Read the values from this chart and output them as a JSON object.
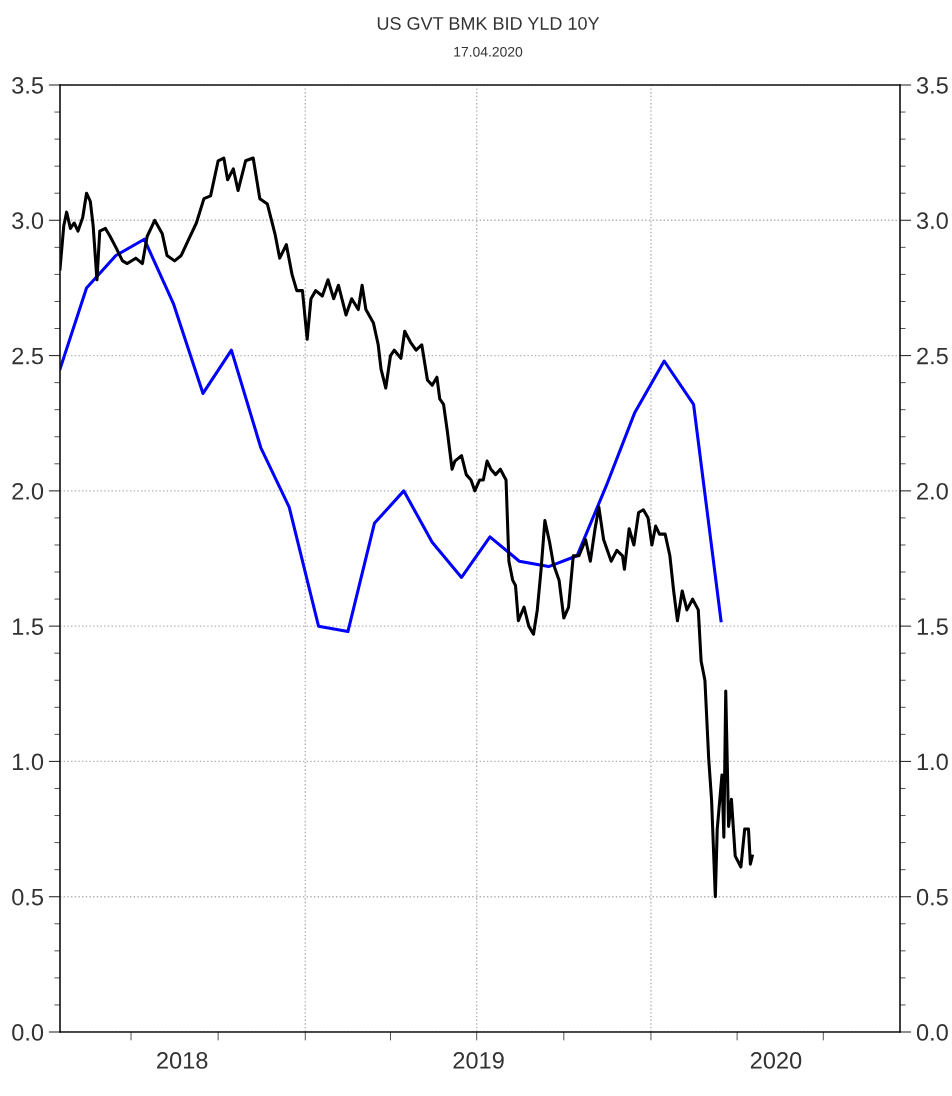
{
  "chart_data": {
    "type": "line",
    "title": "US GVT BMK BID YLD 10Y",
    "subtitle": "17.04.2020",
    "xlim": [
      "2018-04-17",
      "2020-09-20"
    ],
    "xticks": [
      {
        "value": "2018-07-01",
        "label": null
      },
      {
        "value": "2018-10-01",
        "label": null
      },
      {
        "value": "2019-01-01",
        "label": null
      },
      {
        "value": "2019-04-01",
        "label": null
      },
      {
        "value": "2019-07-01",
        "label": null
      },
      {
        "value": "2019-10-01",
        "label": null
      },
      {
        "value": "2020-01-01",
        "label": null
      },
      {
        "value": "2020-04-01",
        "label": null
      },
      {
        "value": "2020-07-01",
        "label": null
      },
      {
        "value": "2018-08-24",
        "label": "2018"
      },
      {
        "value": "2019-07-03",
        "label": "2019"
      },
      {
        "value": "2020-05-12",
        "label": "2020"
      }
    ],
    "ylim": [
      0,
      3.5
    ],
    "yticks": [
      {
        "value": 0,
        "label": "0.0"
      },
      0.5,
      {
        "value": 1,
        "label": "1.0"
      },
      1.5,
      {
        "value": 2,
        "label": "2.0"
      },
      2.5,
      {
        "value": 3,
        "label": "3.0"
      },
      3.5,
      {
        "value": 0.1,
        "label": null
      },
      {
        "value": 0.2,
        "label": null
      },
      {
        "value": 0.3,
        "label": null
      },
      {
        "value": 0.4,
        "label": null
      },
      {
        "value": 0.6,
        "label": null
      },
      {
        "value": 0.7,
        "label": null
      },
      {
        "value": 0.8,
        "label": null
      },
      {
        "value": 0.9,
        "label": null
      },
      {
        "value": 1.1,
        "label": null
      },
      {
        "value": 1.2,
        "label": null
      },
      {
        "value": 1.3,
        "label": null
      },
      {
        "value": 1.4,
        "label": null
      },
      {
        "value": 1.6,
        "label": null
      },
      {
        "value": 1.7,
        "label": null
      },
      {
        "value": 1.8,
        "label": null
      },
      {
        "value": 1.9,
        "label": null
      },
      {
        "value": 2.1,
        "label": null
      },
      {
        "value": 2.2,
        "label": null
      },
      {
        "value": 2.3,
        "label": null
      },
      {
        "value": 2.4,
        "label": null
      },
      {
        "value": 2.6,
        "label": null
      },
      {
        "value": 2.7,
        "label": null
      },
      {
        "value": 2.8,
        "label": null
      },
      {
        "value": 2.9,
        "label": null
      },
      {
        "value": 3.1,
        "label": null
      },
      {
        "value": 3.2,
        "label": null
      },
      {
        "value": 3.3,
        "label": null
      },
      {
        "value": 3.4,
        "label": null
      }
    ],
    "y2lim": [
      0,
      3.5
    ],
    "y2ticks": [
      {
        "value": 0,
        "label": "0.0"
      },
      0.5,
      {
        "value": 1,
        "label": "1.0"
      },
      1.5,
      {
        "value": 2,
        "label": "2.0"
      },
      2.5,
      {
        "value": 3,
        "label": "3.0"
      },
      3.5,
      {
        "value": 0.1,
        "label": null
      },
      {
        "value": 0.2,
        "label": null
      },
      {
        "value": 0.3,
        "label": null
      },
      {
        "value": 0.4,
        "label": null
      },
      {
        "value": 0.6,
        "label": null
      },
      {
        "value": 0.7,
        "label": null
      },
      {
        "value": 0.8,
        "label": null
      },
      {
        "value": 0.9,
        "label": null
      },
      {
        "value": 1.1,
        "label": null
      },
      {
        "value": 1.2,
        "label": null
      },
      {
        "value": 1.3,
        "label": null
      },
      {
        "value": 1.4,
        "label": null
      },
      {
        "value": 1.6,
        "label": null
      },
      {
        "value": 1.7,
        "label": null
      },
      {
        "value": 1.8,
        "label": null
      },
      {
        "value": 1.9,
        "label": null
      },
      {
        "value": 2.1,
        "label": null
      },
      {
        "value": 2.2,
        "label": null
      },
      {
        "value": 2.3,
        "label": null
      },
      {
        "value": 2.4,
        "label": null
      },
      {
        "value": 2.6,
        "label": null
      },
      {
        "value": 2.7,
        "label": null
      },
      {
        "value": 2.8,
        "label": null
      },
      {
        "value": 2.9,
        "label": null
      },
      {
        "value": 3.1,
        "label": null
      },
      {
        "value": 3.2,
        "label": null
      },
      {
        "value": 3.3,
        "label": null
      },
      {
        "value": 3.4,
        "label": null
      }
    ],
    "grid": "y",
    "ref_lines": [
      {
        "axis": "x",
        "value": "2019-01-01",
        "color": "#b0b0b0",
        "line_style": "dotted"
      },
      {
        "axis": "x",
        "value": "2019-07-01",
        "color": "#b0b0b0",
        "line_style": "dotted"
      },
      {
        "axis": "x",
        "value": "2020-01-01",
        "color": "#b0b0b0",
        "line_style": "dotted"
      }
    ],
    "series": [
      {
        "color": "#0000ff",
        "x": [
          "2018-04-17",
          "2018-05-15",
          "2018-06-15",
          "2018-07-15",
          "2018-08-15",
          "2018-09-15",
          "2018-10-15",
          "2018-11-15",
          "2018-12-15",
          "2019-01-15",
          "2019-02-15",
          "2019-03-15",
          "2019-04-15",
          "2019-05-15",
          "2019-06-15",
          "2019-07-15",
          "2019-08-15",
          "2019-09-15",
          "2019-10-15",
          "2019-11-15",
          "2019-12-15",
          "2020-01-15",
          "2020-02-15",
          "2020-03-15"
        ],
        "values": [
          2.45,
          2.75,
          2.87,
          2.93,
          2.69,
          2.36,
          2.52,
          2.16,
          1.94,
          1.5,
          1.48,
          1.88,
          2.0,
          1.81,
          1.68,
          1.83,
          1.74,
          1.72,
          1.76,
          2.02,
          2.29,
          2.48,
          2.32,
          1.52
        ]
      },
      {
        "color": "#000000",
        "x": [
          "2018-04-17",
          "2018-04-21",
          "2018-04-24",
          "2018-04-28",
          "2018-05-02",
          "2018-05-06",
          "2018-05-11",
          "2018-05-15",
          "2018-05-19",
          "2018-05-22",
          "2018-05-26",
          "2018-05-29",
          "2018-06-04",
          "2018-06-09",
          "2018-06-15",
          "2018-06-22",
          "2018-06-27",
          "2018-07-06",
          "2018-07-13",
          "2018-07-18",
          "2018-07-26",
          "2018-08-03",
          "2018-08-08",
          "2018-08-16",
          "2018-08-23",
          "2018-08-31",
          "2018-09-08",
          "2018-09-16",
          "2018-09-23",
          "2018-10-01",
          "2018-10-07",
          "2018-10-11",
          "2018-10-17",
          "2018-10-22",
          "2018-10-30",
          "2018-11-07",
          "2018-11-14",
          "2018-11-22",
          "2018-11-30",
          "2018-12-05",
          "2018-12-12",
          "2018-12-18",
          "2018-12-23",
          "2018-12-29",
          "2019-01-03",
          "2019-01-07",
          "2019-01-12",
          "2019-01-19",
          "2019-01-25",
          "2019-01-31",
          "2019-02-05",
          "2019-02-13",
          "2019-02-19",
          "2019-02-26",
          "2019-03-02",
          "2019-03-06",
          "2019-03-14",
          "2019-03-19",
          "2019-03-22",
          "2019-03-27",
          "2019-04-01",
          "2019-04-05",
          "2019-04-12",
          "2019-04-16",
          "2019-04-22",
          "2019-04-28",
          "2019-05-04",
          "2019-05-10",
          "2019-05-15",
          "2019-05-20",
          "2019-05-23",
          "2019-05-27",
          "2019-05-31",
          "2019-06-05",
          "2019-06-08",
          "2019-06-15",
          "2019-06-20",
          "2019-06-25",
          "2019-06-29",
          "2019-07-04",
          "2019-07-08",
          "2019-07-12",
          "2019-07-16",
          "2019-07-21",
          "2019-07-26",
          "2019-08-01",
          "2019-08-04",
          "2019-08-08",
          "2019-08-11",
          "2019-08-14",
          "2019-08-20",
          "2019-08-25",
          "2019-08-30",
          "2019-09-03",
          "2019-09-07",
          "2019-09-11",
          "2019-09-16",
          "2019-09-20",
          "2019-09-26",
          "2019-10-01",
          "2019-10-06",
          "2019-10-11",
          "2019-10-17",
          "2019-10-24",
          "2019-10-29",
          "2019-11-03",
          "2019-11-07",
          "2019-11-12",
          "2019-11-20",
          "2019-11-26",
          "2019-12-02",
          "2019-12-04",
          "2019-12-09",
          "2019-12-14",
          "2019-12-19",
          "2019-12-24",
          "2019-12-29",
          "2020-01-02",
          "2020-01-06",
          "2020-01-10",
          "2020-01-16",
          "2020-01-21",
          "2020-01-25",
          "2020-01-29",
          "2020-02-03",
          "2020-02-08",
          "2020-02-14",
          "2020-02-20",
          "2020-02-23",
          "2020-02-27",
          "2020-03-02",
          "2020-03-05",
          "2020-03-09",
          "2020-03-11",
          "2020-03-16",
          "2020-03-18",
          "2020-03-20",
          "2020-03-23",
          "2020-03-26",
          "2020-03-30",
          "2020-04-02",
          "2020-04-05",
          "2020-04-09",
          "2020-04-13",
          "2020-04-15",
          "2020-04-17"
        ],
        "values": [
          2.82,
          2.98,
          3.03,
          2.97,
          2.99,
          2.96,
          3.01,
          3.1,
          3.07,
          2.98,
          2.78,
          2.96,
          2.97,
          2.94,
          2.9,
          2.85,
          2.84,
          2.86,
          2.84,
          2.94,
          3.0,
          2.95,
          2.87,
          2.85,
          2.87,
          2.93,
          2.99,
          3.08,
          3.09,
          3.22,
          3.23,
          3.15,
          3.19,
          3.11,
          3.22,
          3.23,
          3.08,
          3.06,
          2.95,
          2.86,
          2.91,
          2.8,
          2.74,
          2.74,
          2.56,
          2.71,
          2.74,
          2.72,
          2.78,
          2.71,
          2.76,
          2.65,
          2.71,
          2.67,
          2.76,
          2.67,
          2.62,
          2.54,
          2.45,
          2.38,
          2.5,
          2.52,
          2.49,
          2.59,
          2.55,
          2.52,
          2.54,
          2.41,
          2.39,
          2.42,
          2.34,
          2.32,
          2.22,
          2.08,
          2.11,
          2.13,
          2.06,
          2.04,
          2.0,
          2.04,
          2.04,
          2.11,
          2.08,
          2.06,
          2.08,
          2.04,
          1.74,
          1.67,
          1.65,
          1.52,
          1.57,
          1.5,
          1.47,
          1.56,
          1.71,
          1.89,
          1.81,
          1.73,
          1.67,
          1.53,
          1.57,
          1.76,
          1.76,
          1.82,
          1.74,
          1.86,
          1.94,
          1.82,
          1.74,
          1.78,
          1.76,
          1.71,
          1.86,
          1.8,
          1.92,
          1.93,
          1.9,
          1.8,
          1.87,
          1.84,
          1.84,
          1.76,
          1.63,
          1.52,
          1.63,
          1.56,
          1.6,
          1.56,
          1.37,
          1.3,
          1.01,
          0.86,
          0.5,
          0.75,
          0.95,
          0.72,
          1.26,
          0.76,
          0.86,
          0.65,
          0.63,
          0.61,
          0.75,
          0.75,
          0.62,
          0.65
        ]
      }
    ]
  }
}
